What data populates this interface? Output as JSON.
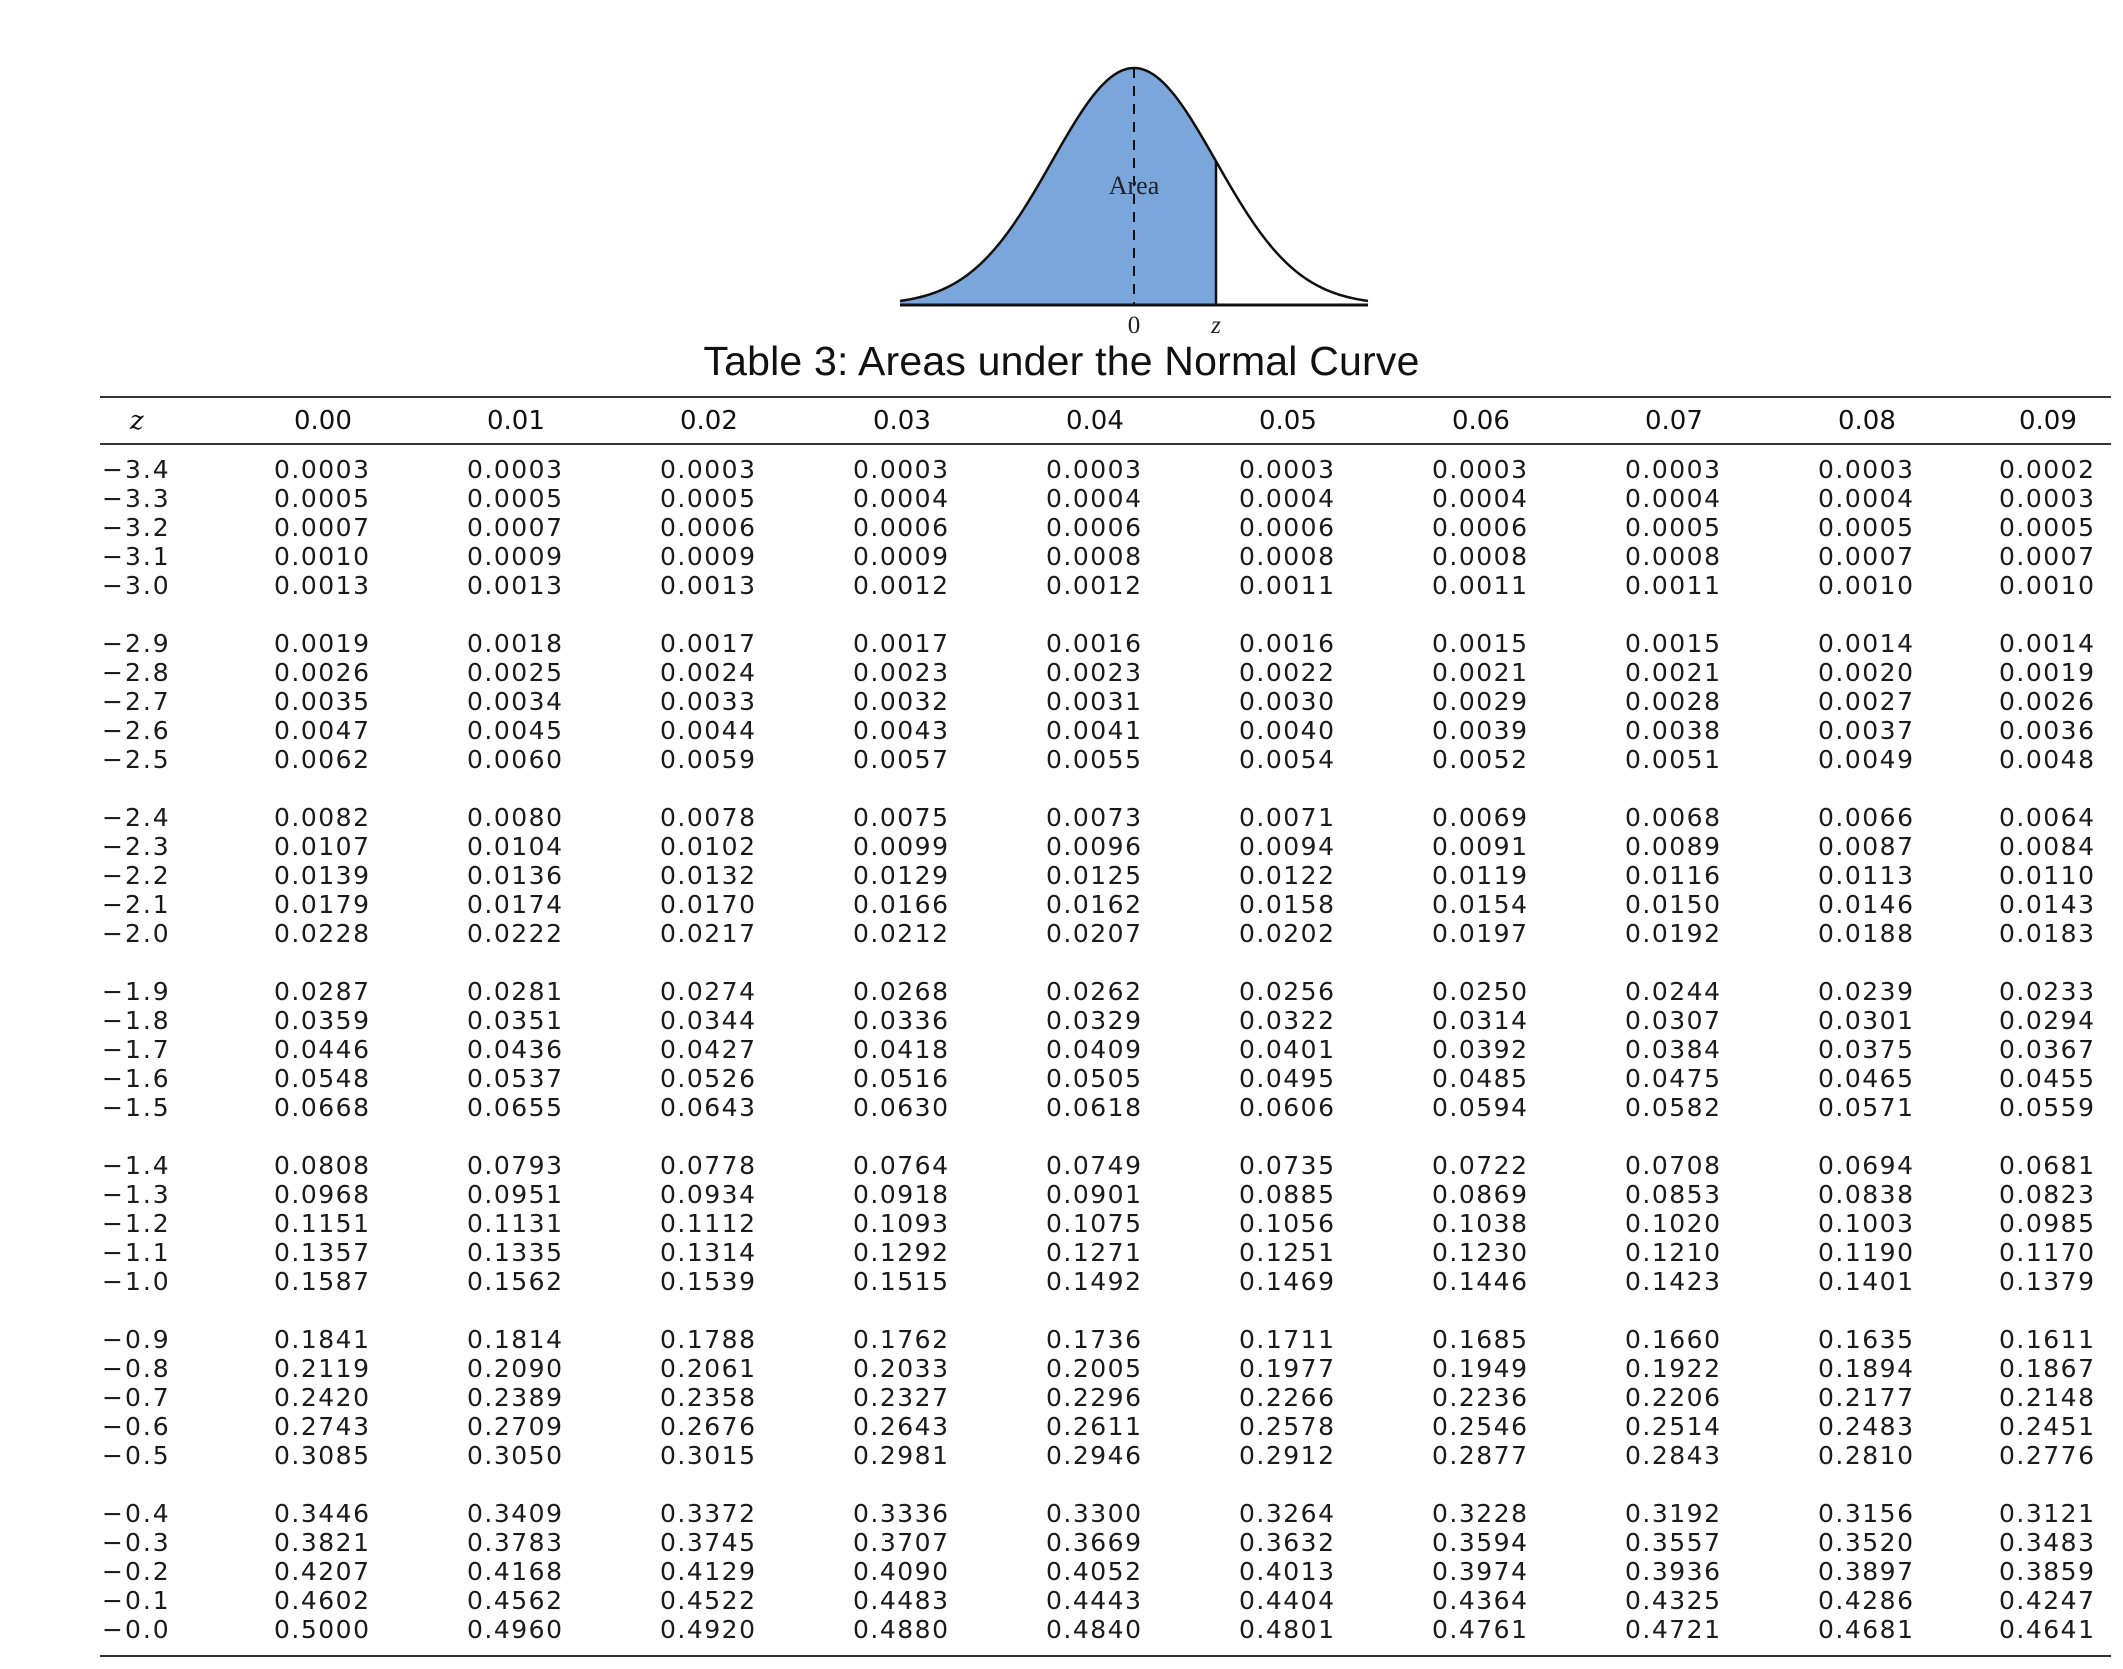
{
  "figure": {
    "area_label": "Area",
    "zero_label": "0",
    "z_label": "z",
    "fill_color": "#7ba6dc",
    "line_color": "#111111"
  },
  "caption": "Table 3: Areas under the Normal Curve",
  "table": {
    "headers": [
      "z",
      "0.00",
      "0.01",
      "0.02",
      "0.03",
      "0.04",
      "0.05",
      "0.06",
      "0.07",
      "0.08",
      "0.09"
    ],
    "rows": [
      [
        "−3.4",
        "0.0003",
        "0.0003",
        "0.0003",
        "0.0003",
        "0.0003",
        "0.0003",
        "0.0003",
        "0.0003",
        "0.0003",
        "0.0002"
      ],
      [
        "−3.3",
        "0.0005",
        "0.0005",
        "0.0005",
        "0.0004",
        "0.0004",
        "0.0004",
        "0.0004",
        "0.0004",
        "0.0004",
        "0.0003"
      ],
      [
        "−3.2",
        "0.0007",
        "0.0007",
        "0.0006",
        "0.0006",
        "0.0006",
        "0.0006",
        "0.0006",
        "0.0005",
        "0.0005",
        "0.0005"
      ],
      [
        "−3.1",
        "0.0010",
        "0.0009",
        "0.0009",
        "0.0009",
        "0.0008",
        "0.0008",
        "0.0008",
        "0.0008",
        "0.0007",
        "0.0007"
      ],
      [
        "−3.0",
        "0.0013",
        "0.0013",
        "0.0013",
        "0.0012",
        "0.0012",
        "0.0011",
        "0.0011",
        "0.0011",
        "0.0010",
        "0.0010"
      ],
      [
        "−2.9",
        "0.0019",
        "0.0018",
        "0.0017",
        "0.0017",
        "0.0016",
        "0.0016",
        "0.0015",
        "0.0015",
        "0.0014",
        "0.0014"
      ],
      [
        "−2.8",
        "0.0026",
        "0.0025",
        "0.0024",
        "0.0023",
        "0.0023",
        "0.0022",
        "0.0021",
        "0.0021",
        "0.0020",
        "0.0019"
      ],
      [
        "−2.7",
        "0.0035",
        "0.0034",
        "0.0033",
        "0.0032",
        "0.0031",
        "0.0030",
        "0.0029",
        "0.0028",
        "0.0027",
        "0.0026"
      ],
      [
        "−2.6",
        "0.0047",
        "0.0045",
        "0.0044",
        "0.0043",
        "0.0041",
        "0.0040",
        "0.0039",
        "0.0038",
        "0.0037",
        "0.0036"
      ],
      [
        "−2.5",
        "0.0062",
        "0.0060",
        "0.0059",
        "0.0057",
        "0.0055",
        "0.0054",
        "0.0052",
        "0.0051",
        "0.0049",
        "0.0048"
      ],
      [
        "−2.4",
        "0.0082",
        "0.0080",
        "0.0078",
        "0.0075",
        "0.0073",
        "0.0071",
        "0.0069",
        "0.0068",
        "0.0066",
        "0.0064"
      ],
      [
        "−2.3",
        "0.0107",
        "0.0104",
        "0.0102",
        "0.0099",
        "0.0096",
        "0.0094",
        "0.0091",
        "0.0089",
        "0.0087",
        "0.0084"
      ],
      [
        "−2.2",
        "0.0139",
        "0.0136",
        "0.0132",
        "0.0129",
        "0.0125",
        "0.0122",
        "0.0119",
        "0.0116",
        "0.0113",
        "0.0110"
      ],
      [
        "−2.1",
        "0.0179",
        "0.0174",
        "0.0170",
        "0.0166",
        "0.0162",
        "0.0158",
        "0.0154",
        "0.0150",
        "0.0146",
        "0.0143"
      ],
      [
        "−2.0",
        "0.0228",
        "0.0222",
        "0.0217",
        "0.0212",
        "0.0207",
        "0.0202",
        "0.0197",
        "0.0192",
        "0.0188",
        "0.0183"
      ],
      [
        "−1.9",
        "0.0287",
        "0.0281",
        "0.0274",
        "0.0268",
        "0.0262",
        "0.0256",
        "0.0250",
        "0.0244",
        "0.0239",
        "0.0233"
      ],
      [
        "−1.8",
        "0.0359",
        "0.0351",
        "0.0344",
        "0.0336",
        "0.0329",
        "0.0322",
        "0.0314",
        "0.0307",
        "0.0301",
        "0.0294"
      ],
      [
        "−1.7",
        "0.0446",
        "0.0436",
        "0.0427",
        "0.0418",
        "0.0409",
        "0.0401",
        "0.0392",
        "0.0384",
        "0.0375",
        "0.0367"
      ],
      [
        "−1.6",
        "0.0548",
        "0.0537",
        "0.0526",
        "0.0516",
        "0.0505",
        "0.0495",
        "0.0485",
        "0.0475",
        "0.0465",
        "0.0455"
      ],
      [
        "−1.5",
        "0.0668",
        "0.0655",
        "0.0643",
        "0.0630",
        "0.0618",
        "0.0606",
        "0.0594",
        "0.0582",
        "0.0571",
        "0.0559"
      ],
      [
        "−1.4",
        "0.0808",
        "0.0793",
        "0.0778",
        "0.0764",
        "0.0749",
        "0.0735",
        "0.0722",
        "0.0708",
        "0.0694",
        "0.0681"
      ],
      [
        "−1.3",
        "0.0968",
        "0.0951",
        "0.0934",
        "0.0918",
        "0.0901",
        "0.0885",
        "0.0869",
        "0.0853",
        "0.0838",
        "0.0823"
      ],
      [
        "−1.2",
        "0.1151",
        "0.1131",
        "0.1112",
        "0.1093",
        "0.1075",
        "0.1056",
        "0.1038",
        "0.1020",
        "0.1003",
        "0.0985"
      ],
      [
        "−1.1",
        "0.1357",
        "0.1335",
        "0.1314",
        "0.1292",
        "0.1271",
        "0.1251",
        "0.1230",
        "0.1210",
        "0.1190",
        "0.1170"
      ],
      [
        "−1.0",
        "0.1587",
        "0.1562",
        "0.1539",
        "0.1515",
        "0.1492",
        "0.1469",
        "0.1446",
        "0.1423",
        "0.1401",
        "0.1379"
      ],
      [
        "−0.9",
        "0.1841",
        "0.1814",
        "0.1788",
        "0.1762",
        "0.1736",
        "0.1711",
        "0.1685",
        "0.1660",
        "0.1635",
        "0.1611"
      ],
      [
        "−0.8",
        "0.2119",
        "0.2090",
        "0.2061",
        "0.2033",
        "0.2005",
        "0.1977",
        "0.1949",
        "0.1922",
        "0.1894",
        "0.1867"
      ],
      [
        "−0.7",
        "0.2420",
        "0.2389",
        "0.2358",
        "0.2327",
        "0.2296",
        "0.2266",
        "0.2236",
        "0.2206",
        "0.2177",
        "0.2148"
      ],
      [
        "−0.6",
        "0.2743",
        "0.2709",
        "0.2676",
        "0.2643",
        "0.2611",
        "0.2578",
        "0.2546",
        "0.2514",
        "0.2483",
        "0.2451"
      ],
      [
        "−0.5",
        "0.3085",
        "0.3050",
        "0.3015",
        "0.2981",
        "0.2946",
        "0.2912",
        "0.2877",
        "0.2843",
        "0.2810",
        "0.2776"
      ],
      [
        "−0.4",
        "0.3446",
        "0.3409",
        "0.3372",
        "0.3336",
        "0.3300",
        "0.3264",
        "0.3228",
        "0.3192",
        "0.3156",
        "0.3121"
      ],
      [
        "−0.3",
        "0.3821",
        "0.3783",
        "0.3745",
        "0.3707",
        "0.3669",
        "0.3632",
        "0.3594",
        "0.3557",
        "0.3520",
        "0.3483"
      ],
      [
        "−0.2",
        "0.4207",
        "0.4168",
        "0.4129",
        "0.4090",
        "0.4052",
        "0.4013",
        "0.3974",
        "0.3936",
        "0.3897",
        "0.3859"
      ],
      [
        "−0.1",
        "0.4602",
        "0.4562",
        "0.4522",
        "0.4483",
        "0.4443",
        "0.4404",
        "0.4364",
        "0.4325",
        "0.4286",
        "0.4247"
      ],
      [
        "−0.0",
        "0.5000",
        "0.4960",
        "0.4920",
        "0.4880",
        "0.4840",
        "0.4801",
        "0.4761",
        "0.4721",
        "0.4681",
        "0.4641"
      ]
    ]
  }
}
